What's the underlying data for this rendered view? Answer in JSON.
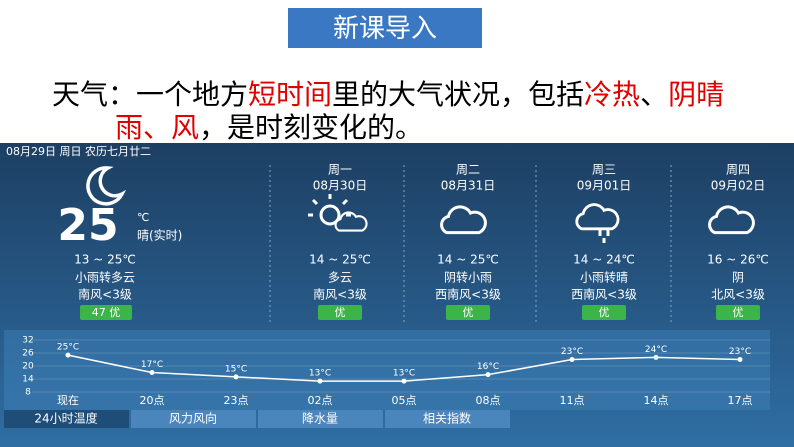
{
  "header": {
    "title": "新课导入"
  },
  "definition": {
    "lines": [
      [
        {
          "text": "天气：一个地方",
          "color": "#000000"
        },
        {
          "text": "短时间",
          "color": "#e00000"
        },
        {
          "text": "里的大气状况，包括",
          "color": "#000000"
        },
        {
          "text": "冷热",
          "color": "#e00000"
        },
        {
          "text": "、",
          "color": "#000000"
        },
        {
          "text": "阴晴",
          "color": "#e00000"
        }
      ],
      [
        {
          "text": "雨、风",
          "color": "#e00000"
        },
        {
          "text": "，是时刻变化的。",
          "color": "#000000"
        }
      ]
    ]
  },
  "weather": {
    "date_bar": "08月29日 周日 农历七月廿二",
    "today": {
      "temp": "25",
      "unit": "℃",
      "desc": "晴(实时)",
      "range": "13 ~ 25℃",
      "weather": "小雨转多云",
      "wind": "南风<3级",
      "aqi": "47 优"
    },
    "forecast": [
      {
        "day": "周一",
        "date": "08月30日",
        "range": "14 ~ 25℃",
        "weather": "多云",
        "wind": "南风<3级",
        "aqi": "优"
      },
      {
        "day": "周二",
        "date": "08月31日",
        "range": "14 ~ 25℃",
        "weather": "阴转小雨",
        "wind": "西南风<3级",
        "aqi": "优"
      },
      {
        "day": "周三",
        "date": "09月01日",
        "range": "14 ~ 24℃",
        "weather": "小雨转晴",
        "wind": "西南风<3级",
        "aqi": "优"
      },
      {
        "day": "周四",
        "date": "09月02日",
        "range": "16 ~ 26℃",
        "weather": "阴",
        "wind": "北风<3级",
        "aqi": "优"
      }
    ],
    "tabs": [
      "24小时温度",
      "风力风向",
      "降水量",
      "相关指数"
    ]
  },
  "chart_data": {
    "type": "line",
    "categories": [
      "现在",
      "20点",
      "23点",
      "02点",
      "05点",
      "08点",
      "11点",
      "14点",
      "17点"
    ],
    "values": [
      25,
      17,
      15,
      13,
      13,
      16,
      23,
      24,
      23
    ],
    "value_labels": [
      "25°C",
      "17°C",
      "15°C",
      "13°C",
      "13°C",
      "16°C",
      "23°C",
      "24°C",
      "23°C"
    ],
    "ylim": [
      8,
      32
    ],
    "yticks": [
      32,
      26,
      20,
      14,
      8
    ],
    "grid": true,
    "color": "#ffffff"
  }
}
